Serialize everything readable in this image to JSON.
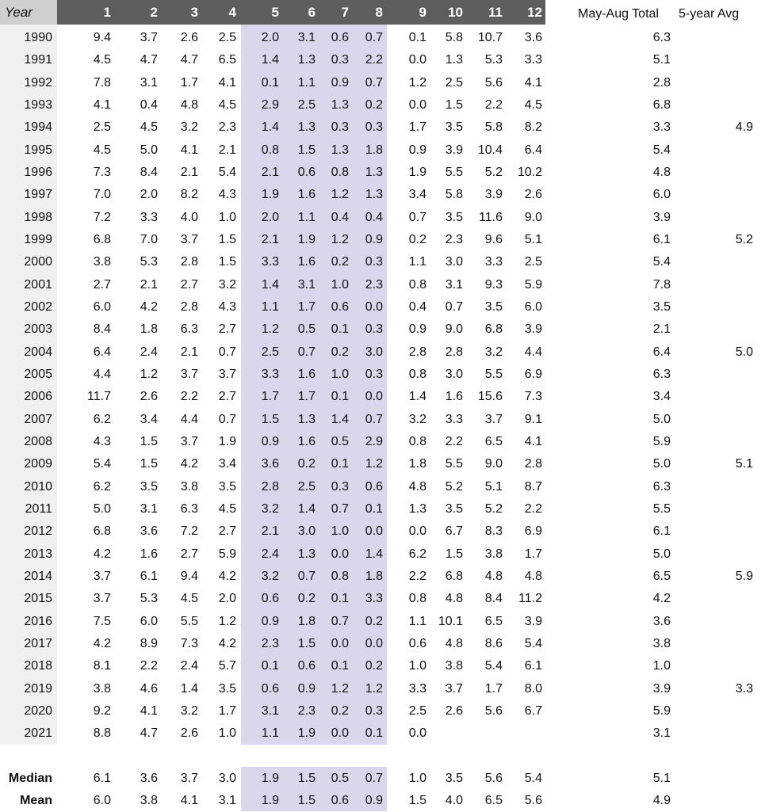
{
  "headers": {
    "year": "Year",
    "months": [
      "1",
      "2",
      "3",
      "4",
      "5",
      "6",
      "7",
      "8",
      "9",
      "10",
      "11",
      "12"
    ],
    "may_aug_total": "May-Aug Total",
    "five_year_avg": "5-year Avg"
  },
  "rows": [
    {
      "year": "1990",
      "m": [
        "9.4",
        "3.7",
        "2.6",
        "2.5",
        "2.0",
        "3.1",
        "0.6",
        "0.7",
        "0.1",
        "5.8",
        "10.7",
        "3.6"
      ],
      "total": "6.3",
      "avg": ""
    },
    {
      "year": "1991",
      "m": [
        "4.5",
        "4.7",
        "4.7",
        "6.5",
        "1.4",
        "1.3",
        "0.3",
        "2.2",
        "0.0",
        "1.3",
        "5.3",
        "3.3"
      ],
      "total": "5.1",
      "avg": ""
    },
    {
      "year": "1992",
      "m": [
        "7.8",
        "3.1",
        "1.7",
        "4.1",
        "0.1",
        "1.1",
        "0.9",
        "0.7",
        "1.2",
        "2.5",
        "5.6",
        "4.1"
      ],
      "total": "2.8",
      "avg": ""
    },
    {
      "year": "1993",
      "m": [
        "4.1",
        "0.4",
        "4.8",
        "4.5",
        "2.9",
        "2.5",
        "1.3",
        "0.2",
        "0.0",
        "1.5",
        "2.2",
        "4.5"
      ],
      "total": "6.8",
      "avg": ""
    },
    {
      "year": "1994",
      "m": [
        "2.5",
        "4.5",
        "3.2",
        "2.3",
        "1.4",
        "1.3",
        "0.3",
        "0.3",
        "1.7",
        "3.5",
        "5.8",
        "8.2"
      ],
      "total": "3.3",
      "avg": "4.9"
    },
    {
      "year": "1995",
      "m": [
        "4.5",
        "5.0",
        "4.1",
        "2.1",
        "0.8",
        "1.5",
        "1.3",
        "1.8",
        "0.9",
        "3.9",
        "10.4",
        "6.4"
      ],
      "total": "5.4",
      "avg": ""
    },
    {
      "year": "1996",
      "m": [
        "7.3",
        "8.4",
        "2.1",
        "5.4",
        "2.1",
        "0.6",
        "0.8",
        "1.3",
        "1.9",
        "5.5",
        "5.2",
        "10.2"
      ],
      "total": "4.8",
      "avg": ""
    },
    {
      "year": "1997",
      "m": [
        "7.0",
        "2.0",
        "8.2",
        "4.3",
        "1.9",
        "1.6",
        "1.2",
        "1.3",
        "3.4",
        "5.8",
        "3.9",
        "2.6"
      ],
      "total": "6.0",
      "avg": ""
    },
    {
      "year": "1998",
      "m": [
        "7.2",
        "3.3",
        "4.0",
        "1.0",
        "2.0",
        "1.1",
        "0.4",
        "0.4",
        "0.7",
        "3.5",
        "11.6",
        "9.0"
      ],
      "total": "3.9",
      "avg": ""
    },
    {
      "year": "1999",
      "m": [
        "6.8",
        "7.0",
        "3.7",
        "1.5",
        "2.1",
        "1.9",
        "1.2",
        "0.9",
        "0.2",
        "2.3",
        "9.6",
        "5.1"
      ],
      "total": "6.1",
      "avg": "5.2"
    },
    {
      "year": "2000",
      "m": [
        "3.8",
        "5.3",
        "2.8",
        "1.5",
        "3.3",
        "1.6",
        "0.2",
        "0.3",
        "1.1",
        "3.0",
        "3.3",
        "2.5"
      ],
      "total": "5.4",
      "avg": ""
    },
    {
      "year": "2001",
      "m": [
        "2.7",
        "2.1",
        "2.7",
        "3.2",
        "1.4",
        "3.1",
        "1.0",
        "2.3",
        "0.8",
        "3.1",
        "9.3",
        "5.9"
      ],
      "total": "7.8",
      "avg": ""
    },
    {
      "year": "2002",
      "m": [
        "6.0",
        "4.2",
        "2.8",
        "4.3",
        "1.1",
        "1.7",
        "0.6",
        "0.0",
        "0.4",
        "0.7",
        "3.5",
        "6.0"
      ],
      "total": "3.5",
      "avg": ""
    },
    {
      "year": "2003",
      "m": [
        "8.4",
        "1.8",
        "6.3",
        "2.7",
        "1.2",
        "0.5",
        "0.1",
        "0.3",
        "0.9",
        "9.0",
        "6.8",
        "3.9"
      ],
      "total": "2.1",
      "avg": ""
    },
    {
      "year": "2004",
      "m": [
        "6.4",
        "2.4",
        "2.1",
        "0.7",
        "2.5",
        "0.7",
        "0.2",
        "3.0",
        "2.8",
        "2.8",
        "3.2",
        "4.4"
      ],
      "total": "6.4",
      "avg": "5.0"
    },
    {
      "year": "2005",
      "m": [
        "4.4",
        "1.2",
        "3.7",
        "3.7",
        "3.3",
        "1.6",
        "1.0",
        "0.3",
        "0.8",
        "3.0",
        "5.5",
        "6.9"
      ],
      "total": "6.3",
      "avg": ""
    },
    {
      "year": "2006",
      "m": [
        "11.7",
        "2.6",
        "2.2",
        "2.7",
        "1.7",
        "1.7",
        "0.1",
        "0.0",
        "1.4",
        "1.6",
        "15.6",
        "7.3"
      ],
      "total": "3.4",
      "avg": ""
    },
    {
      "year": "2007",
      "m": [
        "6.2",
        "3.4",
        "4.4",
        "0.7",
        "1.5",
        "1.3",
        "1.4",
        "0.7",
        "3.2",
        "3.3",
        "3.7",
        "9.1"
      ],
      "total": "5.0",
      "avg": ""
    },
    {
      "year": "2008",
      "m": [
        "4.3",
        "1.5",
        "3.7",
        "1.9",
        "0.9",
        "1.6",
        "0.5",
        "2.9",
        "0.8",
        "2.2",
        "6.5",
        "4.1"
      ],
      "total": "5.9",
      "avg": ""
    },
    {
      "year": "2009",
      "m": [
        "5.4",
        "1.5",
        "4.2",
        "3.4",
        "3.6",
        "0.2",
        "0.1",
        "1.2",
        "1.8",
        "5.5",
        "9.0",
        "2.8"
      ],
      "total": "5.0",
      "avg": "5.1"
    },
    {
      "year": "2010",
      "m": [
        "6.2",
        "3.5",
        "3.8",
        "3.5",
        "2.8",
        "2.5",
        "0.3",
        "0.6",
        "4.8",
        "5.2",
        "5.1",
        "8.7"
      ],
      "total": "6.3",
      "avg": ""
    },
    {
      "year": "2011",
      "m": [
        "5.0",
        "3.1",
        "6.3",
        "4.5",
        "3.2",
        "1.4",
        "0.7",
        "0.1",
        "1.3",
        "3.5",
        "5.2",
        "2.2"
      ],
      "total": "5.5",
      "avg": ""
    },
    {
      "year": "2012",
      "m": [
        "6.8",
        "3.6",
        "7.2",
        "2.7",
        "2.1",
        "3.0",
        "1.0",
        "0.0",
        "0.0",
        "6.7",
        "8.3",
        "6.9"
      ],
      "total": "6.1",
      "avg": ""
    },
    {
      "year": "2013",
      "m": [
        "4.2",
        "1.6",
        "2.7",
        "5.9",
        "2.4",
        "1.3",
        "0.0",
        "1.4",
        "6.2",
        "1.5",
        "3.8",
        "1.7"
      ],
      "total": "5.0",
      "avg": ""
    },
    {
      "year": "2014",
      "m": [
        "3.7",
        "6.1",
        "9.4",
        "4.2",
        "3.2",
        "0.7",
        "0.8",
        "1.8",
        "2.2",
        "6.8",
        "4.8",
        "4.8"
      ],
      "total": "6.5",
      "avg": "5.9"
    },
    {
      "year": "2015",
      "m": [
        "3.7",
        "5.3",
        "4.5",
        "2.0",
        "0.6",
        "0.2",
        "0.1",
        "3.3",
        "0.8",
        "4.8",
        "8.4",
        "11.2"
      ],
      "total": "4.2",
      "avg": ""
    },
    {
      "year": "2016",
      "m": [
        "7.5",
        "6.0",
        "5.5",
        "1.2",
        "0.9",
        "1.8",
        "0.7",
        "0.2",
        "1.1",
        "10.1",
        "6.5",
        "3.9"
      ],
      "total": "3.6",
      "avg": ""
    },
    {
      "year": "2017",
      "m": [
        "4.2",
        "8.9",
        "7.3",
        "4.2",
        "2.3",
        "1.5",
        "0.0",
        "0.0",
        "0.6",
        "4.8",
        "8.6",
        "5.4"
      ],
      "total": "3.8",
      "avg": ""
    },
    {
      "year": "2018",
      "m": [
        "8.1",
        "2.2",
        "2.4",
        "5.7",
        "0.1",
        "0.6",
        "0.1",
        "0.2",
        "1.0",
        "3.8",
        "5.4",
        "6.1"
      ],
      "total": "1.0",
      "avg": ""
    },
    {
      "year": "2019",
      "m": [
        "3.8",
        "4.6",
        "1.4",
        "3.5",
        "0.6",
        "0.9",
        "1.2",
        "1.2",
        "3.3",
        "3.7",
        "1.7",
        "8.0"
      ],
      "total": "3.9",
      "avg": "3.3"
    },
    {
      "year": "2020",
      "m": [
        "9.2",
        "4.1",
        "3.2",
        "1.7",
        "3.1",
        "2.3",
        "0.2",
        "0.3",
        "2.5",
        "2.6",
        "5.6",
        "6.7"
      ],
      "total": "5.9",
      "avg": ""
    },
    {
      "year": "2021",
      "m": [
        "8.8",
        "4.7",
        "2.6",
        "1.0",
        "1.1",
        "1.9",
        "0.0",
        "0.1",
        "0.0",
        "",
        "",
        ""
      ],
      "total": "3.1",
      "avg": ""
    }
  ],
  "footer": [
    {
      "label": "Median",
      "m": [
        "6.1",
        "3.6",
        "3.7",
        "3.0",
        "1.9",
        "1.5",
        "0.5",
        "0.7",
        "1.0",
        "3.5",
        "5.6",
        "5.4"
      ],
      "total": "5.1"
    },
    {
      "label": "Mean",
      "m": [
        "6.0",
        "3.8",
        "4.1",
        "3.1",
        "1.9",
        "1.5",
        "0.6",
        "0.9",
        "1.5",
        "4.0",
        "6.5",
        "5.6"
      ],
      "total": "4.9"
    }
  ],
  "colors": {
    "header_bg": "#5e5e5e",
    "year_header_bg": "#cfcfcf",
    "year_col_bg": "#f0f0f0",
    "may_aug_highlight": "#dcd6ec"
  }
}
